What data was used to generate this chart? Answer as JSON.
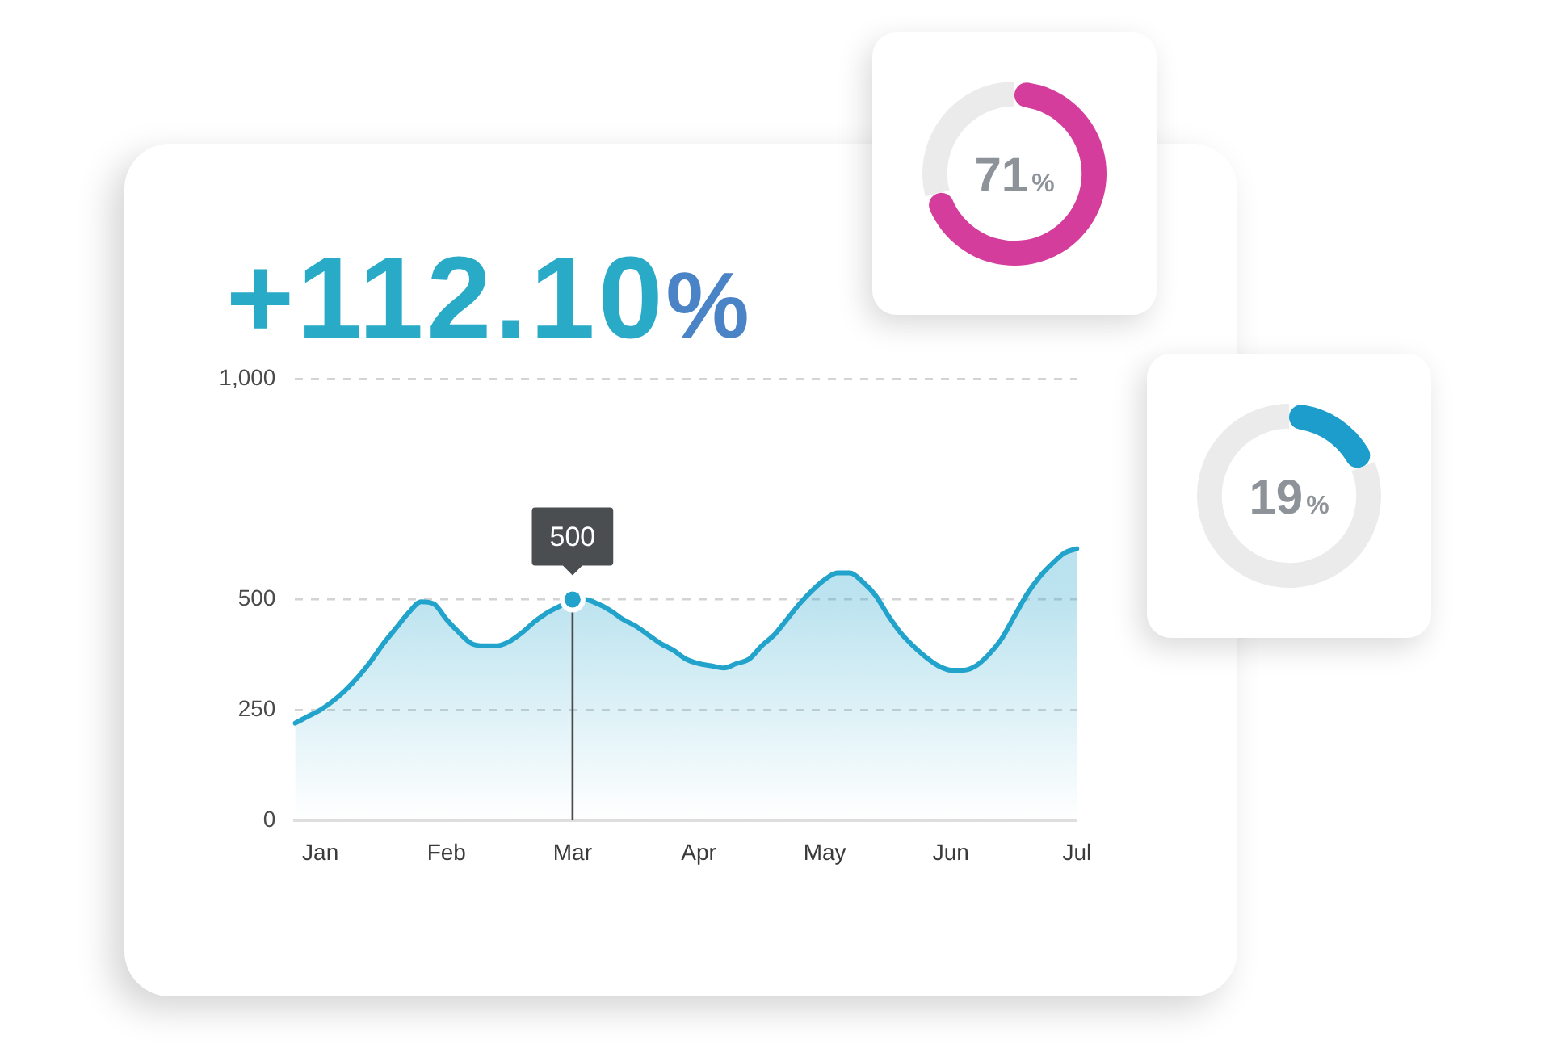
{
  "chart_data": [
    {
      "type": "area",
      "title": "+112.10%",
      "categories": [
        null,
        null,
        "Jan",
        null,
        null,
        null,
        null,
        null,
        null,
        null,
        null,
        null,
        "Feb",
        null,
        null,
        null,
        null,
        null,
        null,
        null,
        null,
        null,
        "Mar",
        null,
        null,
        null,
        null,
        null,
        null,
        null,
        null,
        null,
        "Apr",
        null,
        null,
        null,
        null,
        null,
        null,
        null,
        null,
        null,
        "May",
        null,
        null,
        null,
        null,
        null,
        null,
        null,
        null,
        null,
        "Jun",
        null,
        null,
        null,
        null,
        null,
        null,
        null,
        null,
        null,
        "Jul"
      ],
      "values": [
        220,
        235,
        250,
        270,
        295,
        325,
        360,
        400,
        435,
        470,
        495,
        490,
        455,
        425,
        400,
        395,
        395,
        405,
        425,
        450,
        470,
        485,
        500,
        500,
        490,
        475,
        455,
        440,
        420,
        400,
        385,
        365,
        355,
        350,
        345,
        355,
        365,
        395,
        420,
        455,
        490,
        520,
        545,
        560,
        560,
        540,
        510,
        465,
        425,
        395,
        370,
        350,
        340,
        340,
        350,
        375,
        410,
        460,
        510,
        550,
        580,
        605,
        615
      ],
      "color": "#22a3cb",
      "ylim": [
        0,
        1000
      ],
      "yticks": [
        0,
        250,
        500,
        {
          "value": 1000,
          "label": "1,000"
        }
      ],
      "grid": "y",
      "marker": "none",
      "annotations": [
        {
          "text": "500",
          "x": "Mar",
          "y": 500
        }
      ]
    },
    {
      "type": "donut",
      "categories": [
        null,
        null
      ],
      "values": [
        71,
        29
      ],
      "colors": [
        "#d43d9c",
        "#ebebeb"
      ],
      "annotations": [
        "71%"
      ]
    },
    {
      "type": "donut",
      "categories": [
        null,
        null
      ],
      "values": [
        19,
        81
      ],
      "colors": [
        "#1c9dcc",
        "#ebebeb"
      ],
      "annotations": [
        "19%"
      ]
    }
  ]
}
